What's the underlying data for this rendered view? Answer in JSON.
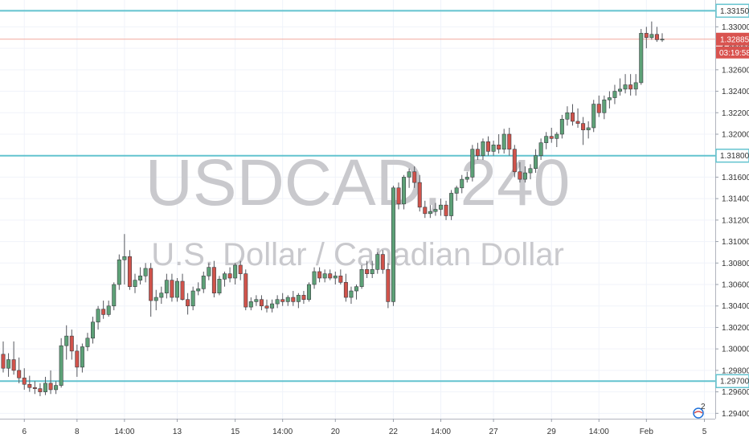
{
  "chart_data": {
    "type": "candlestick",
    "watermark": {
      "symbol": "USDCAD, 240",
      "description": "U.S. Dollar / Canadian Dollar"
    },
    "ylim": [
      1.2935,
      1.3325
    ],
    "y_ticks": [
      "1.29400",
      "1.29600",
      "1.29800",
      "1.30000",
      "1.30200",
      "1.30400",
      "1.30600",
      "1.30800",
      "1.31000",
      "1.31200",
      "1.31400",
      "1.31600",
      "1.31800",
      "1.32000",
      "1.32200",
      "1.32400",
      "1.32600",
      "1.32800",
      "1.33000"
    ],
    "x_ticks": [
      "6",
      "8",
      "14:00",
      "13",
      "15",
      "14:00",
      "20",
      "22",
      "14:00",
      "27",
      "29",
      "14:00",
      "Feb",
      "5"
    ],
    "horizontal_levels": [
      {
        "price": "1.33150",
        "value": 1.3315,
        "color": "#63c3cf"
      },
      {
        "price": "1.31800",
        "value": 1.318,
        "color": "#63c3cf"
      },
      {
        "price": "1.29700",
        "value": 1.297,
        "color": "#63c3cf"
      }
    ],
    "last_price": {
      "price": "1.32885",
      "countdown": "03:19:58",
      "value": 1.32885,
      "color": "#d9534f"
    },
    "up_color": "#5da177",
    "down_color": "#d0534b",
    "candles": [
      [
        1.2995,
        1.3007,
        1.2978,
        1.2982
      ],
      [
        1.2982,
        1.2996,
        1.2974,
        1.299
      ],
      [
        1.299,
        1.3007,
        1.2976,
        1.298
      ],
      [
        1.298,
        1.2992,
        1.2968,
        1.2973
      ],
      [
        1.2973,
        1.2982,
        1.2962,
        1.2967
      ],
      [
        1.2967,
        1.2975,
        1.296,
        1.2964
      ],
      [
        1.2964,
        1.297,
        1.2958,
        1.2963
      ],
      [
        1.2963,
        1.2968,
        1.2956,
        1.296
      ],
      [
        1.296,
        1.2974,
        1.2957,
        1.2968
      ],
      [
        1.2968,
        1.298,
        1.2958,
        1.2962
      ],
      [
        1.2962,
        1.297,
        1.2958,
        1.2966
      ],
      [
        1.2966,
        1.301,
        1.2964,
        1.3003
      ],
      [
        1.3003,
        1.3022,
        1.299,
        1.3012
      ],
      [
        1.3012,
        1.3018,
        1.299,
        1.2998
      ],
      [
        1.2998,
        1.3004,
        1.2974,
        1.2983
      ],
      [
        1.2983,
        1.3005,
        1.2978,
        1.3002
      ],
      [
        1.3002,
        1.3015,
        1.2998,
        1.301
      ],
      [
        1.301,
        1.303,
        1.3005,
        1.3025
      ],
      [
        1.3025,
        1.304,
        1.3018,
        1.3037
      ],
      [
        1.3037,
        1.3045,
        1.3028,
        1.3032
      ],
      [
        1.3032,
        1.3045,
        1.303,
        1.304
      ],
      [
        1.304,
        1.3062,
        1.3036,
        1.306
      ],
      [
        1.306,
        1.3088,
        1.3055,
        1.3083
      ],
      [
        1.3083,
        1.3107,
        1.306,
        1.3086
      ],
      [
        1.3086,
        1.3092,
        1.3055,
        1.3058
      ],
      [
        1.3058,
        1.307,
        1.3052,
        1.3064
      ],
      [
        1.3064,
        1.3076,
        1.306,
        1.3068
      ],
      [
        1.3068,
        1.308,
        1.3062,
        1.3075
      ],
      [
        1.3075,
        1.308,
        1.303,
        1.3045
      ],
      [
        1.3045,
        1.3055,
        1.3036,
        1.3048
      ],
      [
        1.3048,
        1.3058,
        1.3042,
        1.3052
      ],
      [
        1.3052,
        1.307,
        1.3047,
        1.3064
      ],
      [
        1.3064,
        1.307,
        1.3044,
        1.3048
      ],
      [
        1.3048,
        1.3066,
        1.3044,
        1.3063
      ],
      [
        1.3063,
        1.307,
        1.3045,
        1.3046
      ],
      [
        1.3046,
        1.3052,
        1.3032,
        1.304
      ],
      [
        1.304,
        1.3058,
        1.3036,
        1.3054
      ],
      [
        1.3054,
        1.3062,
        1.305,
        1.3056
      ],
      [
        1.3056,
        1.3072,
        1.3052,
        1.3068
      ],
      [
        1.3068,
        1.308,
        1.3064,
        1.3076
      ],
      [
        1.3076,
        1.3082,
        1.3048,
        1.3052
      ],
      [
        1.3052,
        1.3068,
        1.305,
        1.3065
      ],
      [
        1.3065,
        1.3072,
        1.3058,
        1.307
      ],
      [
        1.307,
        1.3076,
        1.3062,
        1.3066
      ],
      [
        1.3066,
        1.308,
        1.306,
        1.3078
      ],
      [
        1.3078,
        1.3082,
        1.3064,
        1.307
      ],
      [
        1.307,
        1.3074,
        1.3036,
        1.3039
      ],
      [
        1.3039,
        1.3048,
        1.3036,
        1.3044
      ],
      [
        1.3044,
        1.305,
        1.304,
        1.3046
      ],
      [
        1.3046,
        1.305,
        1.3036,
        1.304
      ],
      [
        1.304,
        1.3046,
        1.3034,
        1.3038
      ],
      [
        1.3038,
        1.3046,
        1.3034,
        1.3042
      ],
      [
        1.3042,
        1.305,
        1.3038,
        1.3046
      ],
      [
        1.3046,
        1.3052,
        1.304,
        1.3044
      ],
      [
        1.3044,
        1.305,
        1.304,
        1.3048
      ],
      [
        1.3048,
        1.3054,
        1.304,
        1.3044
      ],
      [
        1.3044,
        1.3052,
        1.3038,
        1.305
      ],
      [
        1.305,
        1.3054,
        1.3042,
        1.3046
      ],
      [
        1.3046,
        1.3062,
        1.3044,
        1.306
      ],
      [
        1.306,
        1.3076,
        1.3056,
        1.3072
      ],
      [
        1.3072,
        1.3076,
        1.3062,
        1.3066
      ],
      [
        1.3066,
        1.3074,
        1.3062,
        1.307
      ],
      [
        1.307,
        1.3074,
        1.3064,
        1.3066
      ],
      [
        1.3066,
        1.3072,
        1.306,
        1.3068
      ],
      [
        1.3068,
        1.3074,
        1.306,
        1.3062
      ],
      [
        1.3062,
        1.307,
        1.3044,
        1.3048
      ],
      [
        1.3048,
        1.3058,
        1.3042,
        1.3054
      ],
      [
        1.3054,
        1.306,
        1.3046,
        1.3058
      ],
      [
        1.3058,
        1.3078,
        1.3056,
        1.3074
      ],
      [
        1.3074,
        1.3082,
        1.3066,
        1.307
      ],
      [
        1.307,
        1.3082,
        1.3066,
        1.3074
      ],
      [
        1.3074,
        1.309,
        1.307,
        1.3088
      ],
      [
        1.3088,
        1.3092,
        1.307,
        1.3074
      ],
      [
        1.3074,
        1.308,
        1.3038,
        1.3044
      ],
      [
        1.3044,
        1.3152,
        1.304,
        1.315
      ],
      [
        1.315,
        1.3155,
        1.313,
        1.3135
      ],
      [
        1.3135,
        1.3162,
        1.313,
        1.316
      ],
      [
        1.316,
        1.3168,
        1.315,
        1.3165
      ],
      [
        1.3165,
        1.317,
        1.315,
        1.3155
      ],
      [
        1.3155,
        1.3162,
        1.3128,
        1.3132
      ],
      [
        1.3132,
        1.3138,
        1.3122,
        1.3126
      ],
      [
        1.3126,
        1.3134,
        1.3122,
        1.3128
      ],
      [
        1.3128,
        1.3136,
        1.3124,
        1.313
      ],
      [
        1.313,
        1.314,
        1.3124,
        1.3134
      ],
      [
        1.3134,
        1.3138,
        1.312,
        1.3124
      ],
      [
        1.3124,
        1.3148,
        1.312,
        1.3145
      ],
      [
        1.3145,
        1.3152,
        1.3138,
        1.315
      ],
      [
        1.315,
        1.3162,
        1.3145,
        1.3158
      ],
      [
        1.3158,
        1.3165,
        1.3155,
        1.316
      ],
      [
        1.316,
        1.319,
        1.3156,
        1.3186
      ],
      [
        1.3186,
        1.3192,
        1.3176,
        1.318
      ],
      [
        1.318,
        1.3196,
        1.3176,
        1.3193
      ],
      [
        1.3193,
        1.3198,
        1.318,
        1.3184
      ],
      [
        1.3184,
        1.3194,
        1.318,
        1.319
      ],
      [
        1.319,
        1.32,
        1.3182,
        1.3186
      ],
      [
        1.3186,
        1.3205,
        1.3182,
        1.32
      ],
      [
        1.32,
        1.3206,
        1.318,
        1.3186
      ],
      [
        1.3186,
        1.319,
        1.316,
        1.3165
      ],
      [
        1.3165,
        1.3174,
        1.3155,
        1.3158
      ],
      [
        1.3158,
        1.317,
        1.3155,
        1.3164
      ],
      [
        1.3164,
        1.3172,
        1.3158,
        1.3168
      ],
      [
        1.3168,
        1.3186,
        1.3164,
        1.318
      ],
      [
        1.318,
        1.3196,
        1.3176,
        1.3192
      ],
      [
        1.3192,
        1.3202,
        1.3186,
        1.3198
      ],
      [
        1.3198,
        1.3206,
        1.3192,
        1.3196
      ],
      [
        1.3196,
        1.3202,
        1.3188,
        1.32
      ],
      [
        1.32,
        1.3218,
        1.3196,
        1.3214
      ],
      [
        1.3214,
        1.3226,
        1.3208,
        1.322
      ],
      [
        1.322,
        1.3228,
        1.3208,
        1.3212
      ],
      [
        1.3212,
        1.3224,
        1.3206,
        1.321
      ],
      [
        1.321,
        1.3216,
        1.319,
        1.3204
      ],
      [
        1.3204,
        1.3212,
        1.3196,
        1.3206
      ],
      [
        1.3206,
        1.3232,
        1.3202,
        1.3228
      ],
      [
        1.3228,
        1.3236,
        1.3216,
        1.322
      ],
      [
        1.322,
        1.3236,
        1.3214,
        1.3232
      ],
      [
        1.3232,
        1.324,
        1.3224,
        1.3234
      ],
      [
        1.3234,
        1.3246,
        1.3228,
        1.324
      ],
      [
        1.324,
        1.3252,
        1.3236,
        1.3242
      ],
      [
        1.3242,
        1.3256,
        1.3238,
        1.3246
      ],
      [
        1.3246,
        1.3256,
        1.3236,
        1.3242
      ],
      [
        1.3242,
        1.3256,
        1.3236,
        1.3248
      ],
      [
        1.3248,
        1.3298,
        1.3246,
        1.3294
      ],
      [
        1.3294,
        1.33,
        1.328,
        1.329
      ],
      [
        1.329,
        1.3305,
        1.3288,
        1.3293
      ],
      [
        1.3293,
        1.33,
        1.3286,
        1.3288
      ],
      [
        1.3288,
        1.3294,
        1.3286,
        1.32885
      ]
    ]
  },
  "tv_badge": {
    "count": "2"
  }
}
